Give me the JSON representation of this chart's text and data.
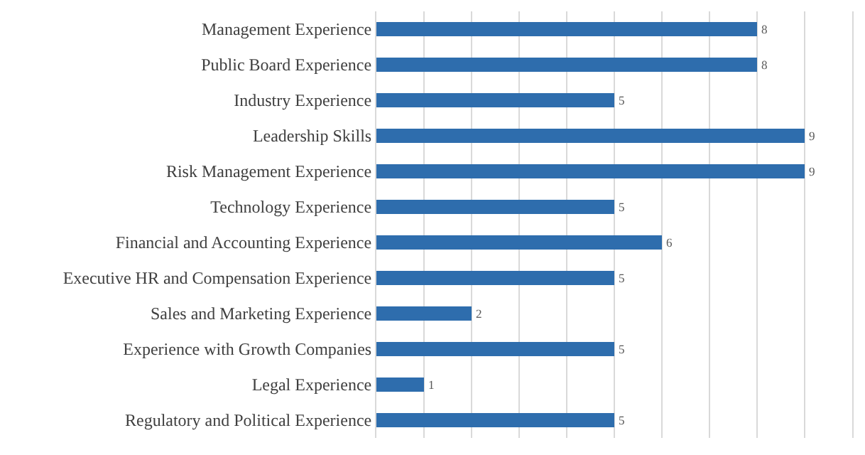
{
  "chart_data": {
    "type": "bar",
    "orientation": "horizontal",
    "categories": [
      "Management Experience",
      "Public Board Experience",
      "Industry Experience",
      "Leadership Skills",
      "Risk Management Experience",
      "Technology Experience",
      "Financial and Accounting Experience",
      "Executive HR and Compensation Experience",
      "Sales and Marketing Experience",
      "Experience with Growth Companies",
      "Legal Experience",
      "Regulatory and Political Experience"
    ],
    "values": [
      8,
      8,
      5,
      9,
      9,
      5,
      6,
      5,
      2,
      5,
      1,
      5
    ],
    "color": "#2e6dad",
    "data_labels": true,
    "xlim": [
      0,
      10
    ],
    "xticks": [
      {
        "value": 0,
        "label": null
      },
      {
        "value": 1,
        "label": null
      },
      {
        "value": 2,
        "label": null
      },
      {
        "value": 3,
        "label": null
      },
      {
        "value": 4,
        "label": null
      },
      {
        "value": 5,
        "label": null
      },
      {
        "value": 6,
        "label": null
      },
      {
        "value": 7,
        "label": null
      },
      {
        "value": 8,
        "label": null
      },
      {
        "value": 9,
        "label": null
      },
      {
        "value": 10,
        "label": null
      }
    ],
    "grid": "x",
    "tick_labels": "y"
  }
}
